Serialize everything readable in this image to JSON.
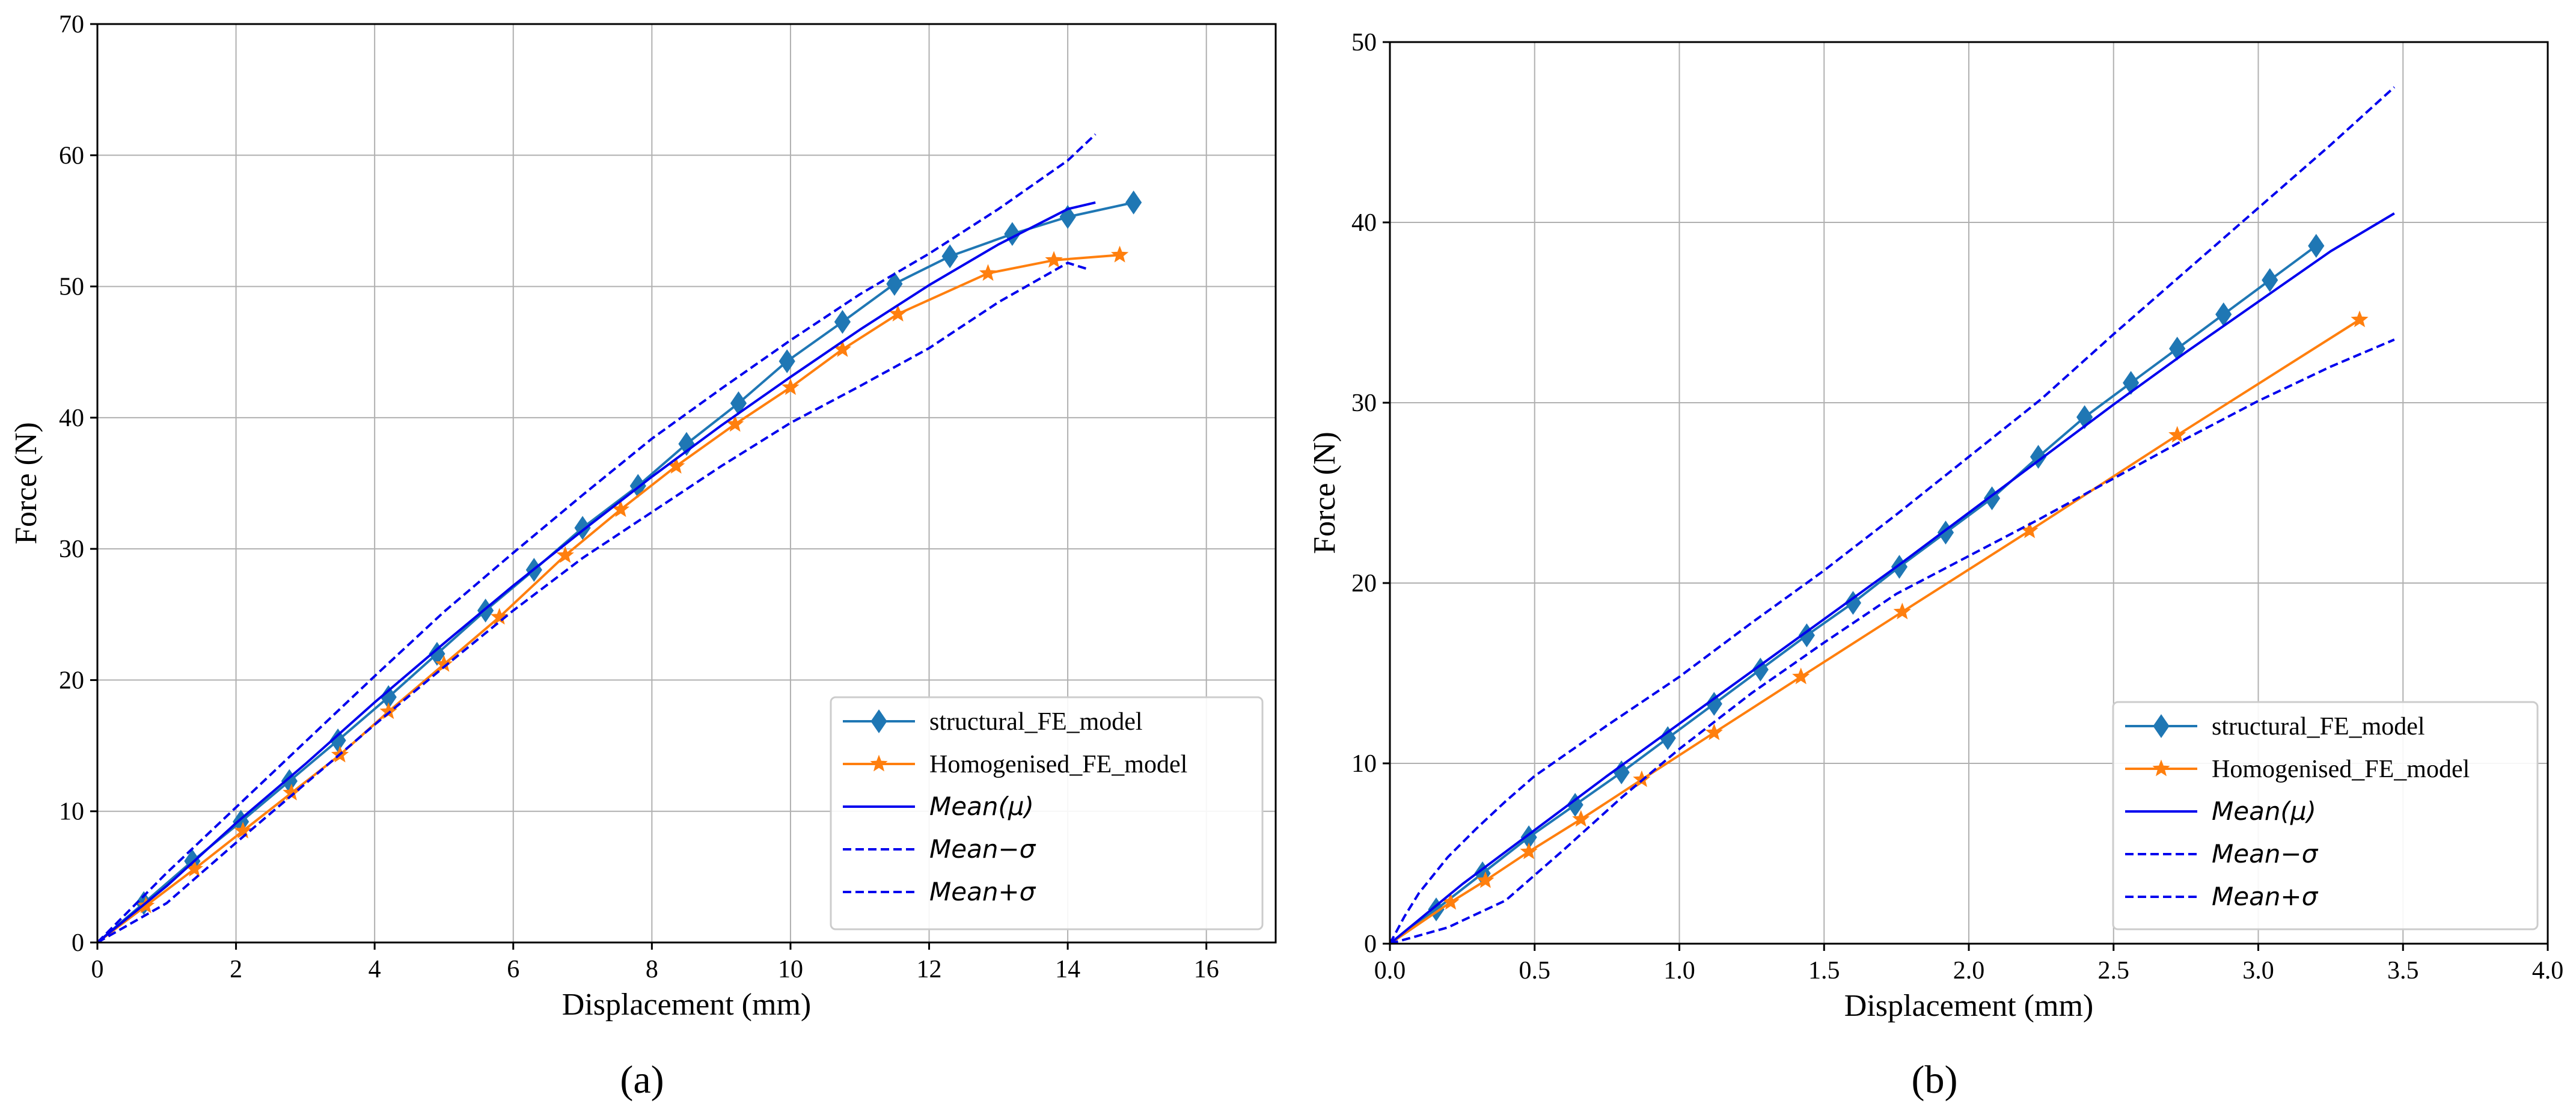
{
  "chart_data": [
    {
      "type": "line",
      "panel_label": "(a)",
      "xlabel": "Displacement (mm)",
      "ylabel": "Force (N)",
      "xlim": [
        0,
        17
      ],
      "ylim": [
        0,
        70
      ],
      "xticks": [
        0,
        2,
        4,
        6,
        8,
        10,
        12,
        14,
        16
      ],
      "yticks": [
        0,
        10,
        20,
        30,
        40,
        50,
        60,
        70
      ],
      "xtick_labels": [
        "0",
        "2",
        "4",
        "6",
        "8",
        "10",
        "12",
        "14",
        "16"
      ],
      "ytick_labels": [
        "0",
        "10",
        "20",
        "30",
        "40",
        "50",
        "60",
        "70"
      ],
      "grid": true,
      "legend_position": "lower-right",
      "series": [
        {
          "name": "structural_FE_model",
          "color": "#1f77b4",
          "style": "solid",
          "marker": "diamond",
          "x": [
            0,
            0.67,
            1.37,
            2.07,
            2.77,
            3.47,
            4.2,
            4.9,
            5.6,
            6.3,
            7.0,
            7.8,
            8.5,
            9.25,
            9.95,
            10.75,
            11.5,
            12.3,
            13.2,
            14.0,
            14.95
          ],
          "y": [
            0,
            3.0,
            6.2,
            9.2,
            12.3,
            15.4,
            18.7,
            22.0,
            25.3,
            28.4,
            31.6,
            34.8,
            38.0,
            41.1,
            44.3,
            47.3,
            50.2,
            52.3,
            54.0,
            55.3,
            56.4
          ]
        },
        {
          "name": "Homogenised_FE_model",
          "color": "#ff7f0e",
          "style": "solid",
          "marker": "star",
          "x": [
            0,
            0.7,
            1.4,
            2.1,
            2.8,
            3.5,
            4.2,
            5.0,
            5.8,
            6.75,
            7.55,
            8.35,
            9.2,
            10.0,
            10.75,
            11.55,
            12.85,
            13.8,
            14.75
          ],
          "y": [
            0,
            2.8,
            5.6,
            8.5,
            11.4,
            14.3,
            17.6,
            21.2,
            24.8,
            29.5,
            33.0,
            36.3,
            39.5,
            42.3,
            45.2,
            47.9,
            51.0,
            52.0,
            52.4
          ]
        },
        {
          "name": "Mean(μ)",
          "color": "#0000ee",
          "style": "solid",
          "marker": "none",
          "x": [
            0,
            1,
            2,
            3,
            4,
            5,
            6,
            7,
            8,
            9,
            10,
            11,
            12,
            13,
            14,
            14.4
          ],
          "y": [
            0,
            4.3,
            9.1,
            13.6,
            18.3,
            22.8,
            27.2,
            31.4,
            35.5,
            39.4,
            43.1,
            46.7,
            50.1,
            53.2,
            55.9,
            56.4
          ]
        },
        {
          "name": "Mean−σ",
          "color": "#0000ee",
          "style": "dashed",
          "marker": "none",
          "x": [
            0,
            1,
            2,
            3,
            4,
            5,
            6,
            7,
            8,
            9,
            10,
            11,
            12,
            13,
            14,
            14.3
          ],
          "y": [
            0,
            3.0,
            7.6,
            12.1,
            16.6,
            21.0,
            25.3,
            29.3,
            32.8,
            36.3,
            39.6,
            42.4,
            45.3,
            48.8,
            51.8,
            51.3
          ]
        },
        {
          "name": "Mean+σ",
          "color": "#0000ee",
          "style": "dashed",
          "marker": "none",
          "x": [
            0,
            1,
            2,
            3,
            4,
            5,
            6,
            7,
            8,
            9,
            10,
            11,
            12,
            13,
            14,
            14.4
          ],
          "y": [
            0,
            5.3,
            10.3,
            15.3,
            20.3,
            25.2,
            29.7,
            34.1,
            38.4,
            42.2,
            45.9,
            49.4,
            52.5,
            55.9,
            59.6,
            61.6
          ]
        }
      ]
    },
    {
      "type": "line",
      "panel_label": "(b)",
      "xlabel": "Displacement (mm)",
      "ylabel": "Force (N)",
      "xlim": [
        0,
        4
      ],
      "ylim": [
        0,
        50
      ],
      "xticks": [
        0,
        0.5,
        1,
        1.5,
        2,
        2.5,
        3,
        3.5,
        4
      ],
      "yticks": [
        0,
        10,
        20,
        30,
        40,
        50
      ],
      "xtick_labels": [
        "0.0",
        "0.5",
        "1.0",
        "1.5",
        "2.0",
        "2.5",
        "3.0",
        "3.5",
        "4.0"
      ],
      "ytick_labels": [
        "0",
        "10",
        "20",
        "30",
        "40",
        "50"
      ],
      "grid": true,
      "legend_position": "lower-right",
      "series": [
        {
          "name": "structural_FE_model",
          "color": "#1f77b4",
          "style": "solid",
          "marker": "diamond",
          "x": [
            0,
            0.16,
            0.32,
            0.48,
            0.64,
            0.8,
            0.96,
            1.12,
            1.28,
            1.44,
            1.6,
            1.76,
            1.92,
            2.08,
            2.24,
            2.4,
            2.56,
            2.72,
            2.88,
            3.04,
            3.2
          ],
          "y": [
            0,
            1.9,
            3.9,
            5.9,
            7.7,
            9.5,
            11.4,
            13.3,
            15.2,
            17.1,
            18.9,
            20.9,
            22.8,
            24.7,
            27.0,
            29.2,
            31.1,
            33.0,
            34.9,
            36.8,
            38.7
          ]
        },
        {
          "name": "Homogenised_FE_model",
          "color": "#ff7f0e",
          "style": "solid",
          "marker": "star",
          "x": [
            0,
            0.21,
            0.33,
            0.48,
            0.66,
            0.87,
            1.12,
            1.42,
            1.77,
            2.21,
            2.72,
            3.35
          ],
          "y": [
            0,
            2.3,
            3.5,
            5.1,
            6.9,
            9.1,
            11.7,
            14.8,
            18.4,
            22.9,
            28.2,
            34.6
          ]
        },
        {
          "name": "Mean(μ)",
          "color": "#0000ee",
          "style": "solid",
          "marker": "none",
          "x": [
            0,
            0.25,
            0.5,
            0.75,
            1.0,
            1.25,
            1.5,
            1.75,
            2.0,
            2.25,
            2.5,
            2.75,
            3.0,
            3.25,
            3.47
          ],
          "y": [
            0,
            3.3,
            6.3,
            9.3,
            12.2,
            15.1,
            18.0,
            20.9,
            23.9,
            26.9,
            29.9,
            32.8,
            35.6,
            38.4,
            40.5
          ]
        },
        {
          "name": "Mean−σ",
          "color": "#0000ee",
          "style": "dashed",
          "marker": "none",
          "x": [
            0,
            0.2,
            0.4,
            0.6,
            0.8,
            1.0,
            1.25,
            1.5,
            1.75,
            2.0,
            2.25,
            2.5,
            2.75,
            3.0,
            3.25,
            3.47
          ],
          "y": [
            0,
            0.9,
            2.4,
            5.2,
            8.1,
            10.8,
            13.9,
            16.7,
            19.4,
            21.5,
            23.6,
            25.8,
            28.0,
            30.1,
            32.0,
            33.5
          ]
        },
        {
          "name": "Mean+σ",
          "color": "#0000ee",
          "style": "dashed",
          "marker": "none",
          "x": [
            0,
            0.05,
            0.1,
            0.2,
            0.3,
            0.4,
            0.5,
            0.75,
            1.0,
            1.25,
            1.5,
            1.75,
            2.0,
            2.25,
            2.5,
            2.75,
            3.0,
            3.25,
            3.47
          ],
          "y": [
            0,
            1.5,
            2.8,
            4.8,
            6.4,
            7.9,
            9.3,
            12.1,
            14.8,
            17.8,
            20.7,
            23.8,
            27.0,
            30.2,
            33.8,
            37.3,
            40.8,
            44.3,
            47.5
          ]
        }
      ]
    }
  ]
}
